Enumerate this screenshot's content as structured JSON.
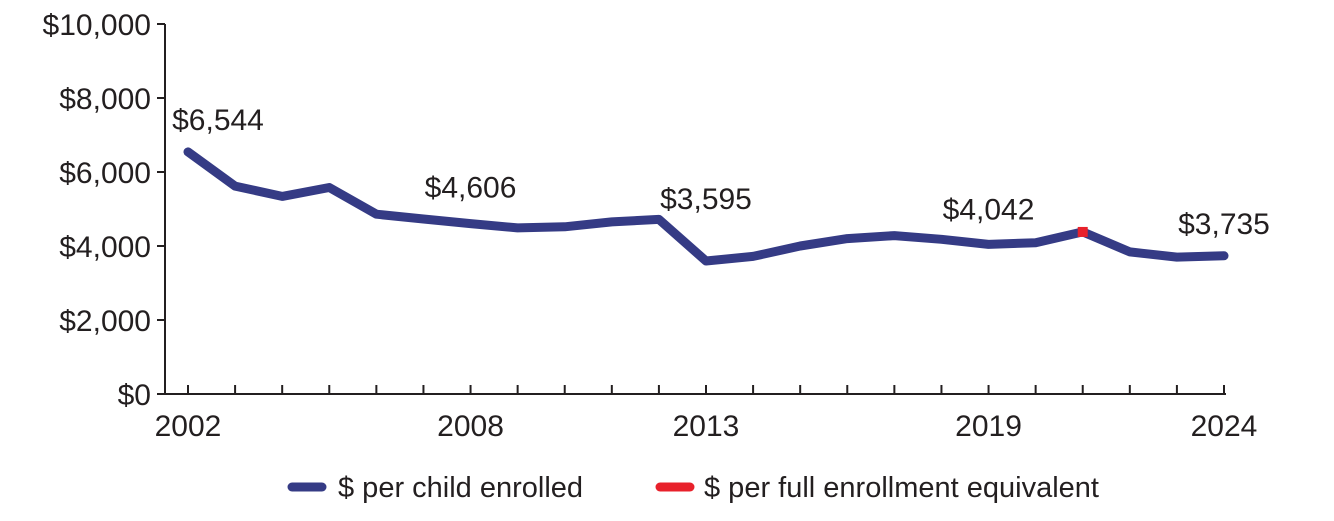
{
  "chart_data": {
    "type": "line",
    "title": "",
    "xlabel": "",
    "ylabel": "",
    "x": [
      2002,
      2003,
      2004,
      2005,
      2006,
      2007,
      2008,
      2009,
      2010,
      2011,
      2012,
      2013,
      2014,
      2015,
      2016,
      2017,
      2018,
      2019,
      2020,
      2021,
      2022,
      2023,
      2024
    ],
    "xlim": [
      2002,
      2024
    ],
    "ylim": [
      0,
      10000
    ],
    "y_ticks": [
      {
        "value": 0,
        "label": "$0"
      },
      {
        "value": 2000,
        "label": "$2,000"
      },
      {
        "value": 4000,
        "label": "$4,000"
      },
      {
        "value": 6000,
        "label": "$6,000"
      },
      {
        "value": 8000,
        "label": "$8,000"
      },
      {
        "value": 10000,
        "label": "$10,000"
      }
    ],
    "x_tick_labels": [
      {
        "value": 2002,
        "label": "2002"
      },
      {
        "value": 2008,
        "label": "2008"
      },
      {
        "value": 2013,
        "label": "2013"
      },
      {
        "value": 2019,
        "label": "2019"
      },
      {
        "value": 2024,
        "label": "2024"
      }
    ],
    "series": [
      {
        "name": "$ per child enrolled",
        "color": "#353b85",
        "values": [
          6544,
          5620,
          5340,
          5580,
          4860,
          4730,
          4606,
          4490,
          4520,
          4650,
          4720,
          3595,
          3720,
          4000,
          4200,
          4280,
          4180,
          4042,
          4090,
          4380,
          3840,
          3700,
          3735
        ]
      },
      {
        "name": "$ per full enrollment equivalent",
        "color": "#e8212b",
        "points": [
          {
            "x": 2021,
            "y": 4380
          }
        ]
      }
    ],
    "annotations": [
      {
        "x": 2002,
        "y": 6544,
        "text": "$6,544"
      },
      {
        "x": 2008,
        "y": 4606,
        "text": "$4,606"
      },
      {
        "x": 2013,
        "y": 3595,
        "text": "$3,595"
      },
      {
        "x": 2019,
        "y": 4042,
        "text": "$4,042"
      },
      {
        "x": 2024,
        "y": 3735,
        "text": "$3,735"
      }
    ],
    "grid": false,
    "legend_position": "bottom"
  }
}
